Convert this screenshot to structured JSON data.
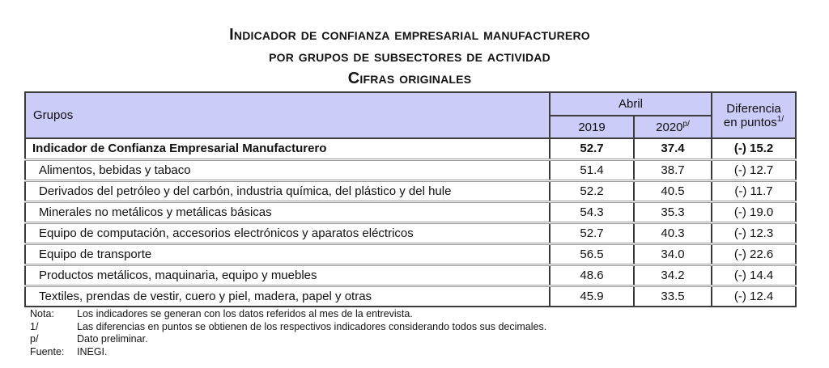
{
  "title": {
    "line1": "Indicador de confianza empresarial manufacturero",
    "line2": "por grupos de subsectores de actividad",
    "line3": "Cifras originales"
  },
  "table": {
    "header": {
      "groups": "Grupos",
      "month": "Abril",
      "year_2019": "2019",
      "year_2020": "2020",
      "year_2020_sup": "p/",
      "diff_line1": "Diferencia",
      "diff_line2": "en puntos",
      "diff_sup": "1/"
    },
    "rows": [
      {
        "label": "Indicador de Confianza Empresarial Manufacturero",
        "v2019": "52.7",
        "v2020": "37.4",
        "diff": "(-) 15.2"
      },
      {
        "label": "Alimentos, bebidas y tabaco",
        "v2019": "51.4",
        "v2020": "38.7",
        "diff": "(-) 12.7"
      },
      {
        "label": "Derivados del petróleo y del carbón, industria química, del plástico y del hule",
        "v2019": "52.2",
        "v2020": "40.5",
        "diff": "(-) 11.7"
      },
      {
        "label": "Minerales no metálicos y metálicas básicas",
        "v2019": "54.3",
        "v2020": "35.3",
        "diff": "(-) 19.0"
      },
      {
        "label": "Equipo de computación, accesorios electrónicos y aparatos eléctricos",
        "v2019": "52.7",
        "v2020": "40.3",
        "diff": "(-) 12.3"
      },
      {
        "label": "Equipo de transporte",
        "v2019": "56.5",
        "v2020": "34.0",
        "diff": "(-) 22.6"
      },
      {
        "label": "Productos metálicos, maquinaria, equipo y muebles",
        "v2019": "48.6",
        "v2020": "34.2",
        "diff": "(-) 14.4"
      },
      {
        "label": "Textiles, prendas de vestir, cuero y piel, madera, papel y otras",
        "v2019": "45.9",
        "v2020": "33.5",
        "diff": "(-) 12.4"
      }
    ]
  },
  "footnotes": [
    {
      "label": "Nota:",
      "text": "Los indicadores se generan con los datos referidos al mes de la entrevista."
    },
    {
      "label": "1/",
      "text": "Las diferencias en puntos se obtienen de los respectivos indicadores considerando todos sus decimales."
    },
    {
      "label": "p/",
      "text": "Dato preliminar."
    },
    {
      "label": "Fuente:",
      "text": "INEGI."
    }
  ],
  "colors": {
    "header_bg": "#ccccf8",
    "border_dark": "#3c3c3c",
    "row_separator": "#9a9a9a",
    "text": "#111111"
  }
}
